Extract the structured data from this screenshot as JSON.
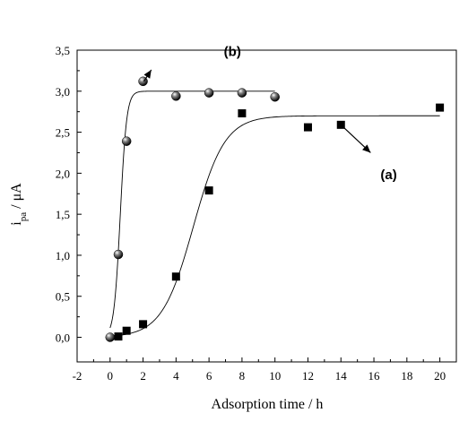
{
  "chart_data": {
    "type": "scatter",
    "xlabel": "Adsorption time / h",
    "ylabel": {
      "base": "i",
      "sub": "pa",
      "rest": " / μA"
    },
    "xlim": [
      -2,
      21
    ],
    "ylim": [
      -0.3,
      3.5
    ],
    "x_ticks": [
      -2,
      0,
      2,
      4,
      6,
      8,
      10,
      12,
      14,
      16,
      18,
      20
    ],
    "x_tick_labels": [
      "-2",
      "0",
      "2",
      "4",
      "6",
      "8",
      "10",
      "12",
      "14",
      "16",
      "18",
      "20"
    ],
    "y_ticks": [
      0,
      0.5,
      1,
      1.5,
      2,
      2.5,
      3,
      3.5
    ],
    "y_tick_labels": [
      "0,0",
      "0,5",
      "1,0",
      "1,5",
      "2,0",
      "2,5",
      "3,0",
      "3,5"
    ],
    "grid": false,
    "legend": "none",
    "series": [
      {
        "name": "(a)",
        "marker": "square",
        "x": [
          0.5,
          1,
          2,
          4,
          6,
          8,
          12,
          14,
          20
        ],
        "y": [
          0.01,
          0.08,
          0.16,
          0.74,
          1.79,
          2.73,
          2.56,
          2.59,
          2.8
        ],
        "fit": {
          "model": "logistic",
          "ymax": 2.7,
          "x0": 5.05,
          "k": 1.05,
          "x_range": [
            0,
            20
          ]
        }
      },
      {
        "name": "(b)",
        "marker": "sphere",
        "x": [
          0,
          0.5,
          1,
          2,
          4,
          6,
          8,
          10
        ],
        "y": [
          0.0,
          1.01,
          2.39,
          3.12,
          2.94,
          2.98,
          2.98,
          2.93
        ],
        "fit": {
          "model": "logistic",
          "ymax": 3.0,
          "x0": 0.62,
          "k": 5.2,
          "x_range": [
            0,
            10
          ]
        }
      }
    ],
    "annotations": [
      {
        "text": "(b)",
        "arrow_from": [
          2.5,
          3.26
        ],
        "arrow_to": [
          2.05,
          3.12
        ],
        "text_at": [
          6.9,
          3.43
        ]
      },
      {
        "text": "(a)",
        "arrow_from": [
          15.8,
          2.25
        ],
        "arrow_to": [
          14.0,
          2.59
        ],
        "text_at": [
          16.4,
          1.93
        ]
      }
    ],
    "colors": {
      "axis": "#000000",
      "marker": "#000000",
      "fit_line": "#000000"
    }
  }
}
